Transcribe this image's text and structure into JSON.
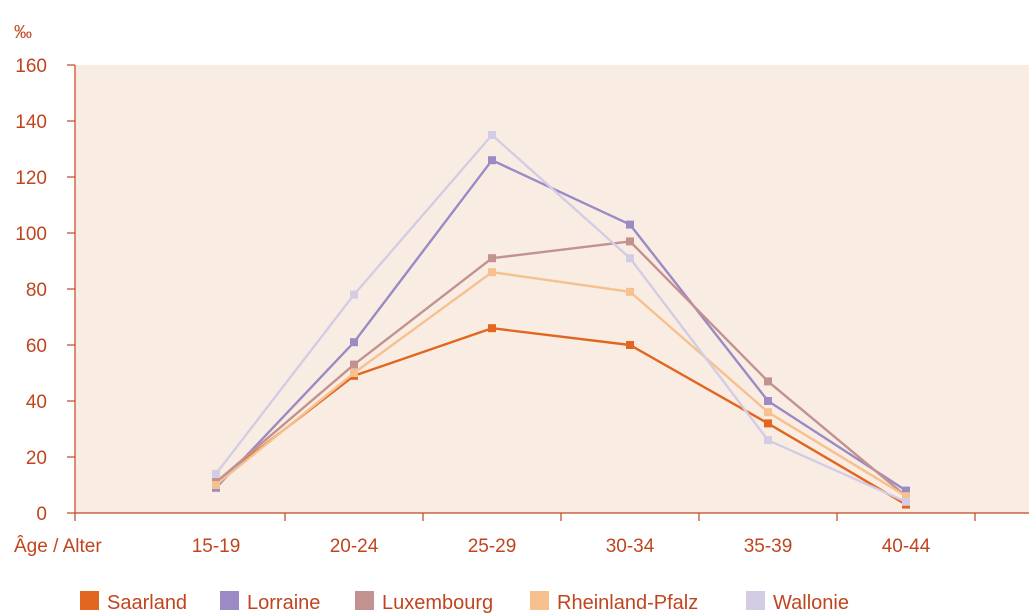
{
  "chart_data": {
    "type": "line",
    "unit_label": "‰",
    "x_axis_title": "Âge / Alter",
    "categories": [
      "15-19",
      "20-24",
      "25-29",
      "30-34",
      "35-39",
      "40-44"
    ],
    "ylim": [
      0,
      160
    ],
    "y_ticks": [
      0,
      20,
      40,
      60,
      80,
      100,
      120,
      140,
      160
    ],
    "grid": false,
    "legend_position": "bottom",
    "plot_background": "#f9ede3",
    "axis_color": "#c0451f",
    "series": [
      {
        "name": "Saarland",
        "color": "#e2661f",
        "values": [
          11,
          49,
          66,
          60,
          32,
          3
        ]
      },
      {
        "name": "Lorraine",
        "color": "#9b8ac4",
        "values": [
          9,
          61,
          126,
          103,
          40,
          8
        ]
      },
      {
        "name": "Luxembourg",
        "color": "#c29290",
        "values": [
          11,
          53,
          91,
          97,
          47,
          6
        ]
      },
      {
        "name": "Rheinland-Pfalz",
        "color": "#f6c08f",
        "values": [
          10,
          50,
          86,
          79,
          36,
          6
        ]
      },
      {
        "name": "Wallonie",
        "color": "#d4cce4",
        "values": [
          14,
          78,
          135,
          91,
          26,
          4
        ]
      }
    ]
  }
}
